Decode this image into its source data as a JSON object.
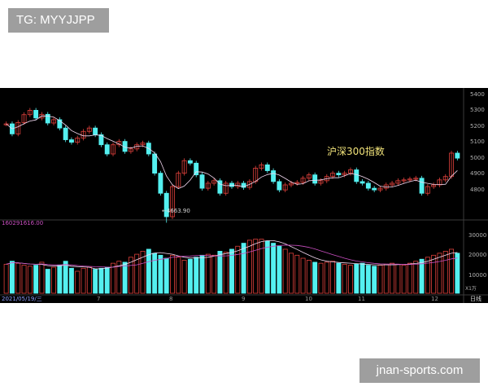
{
  "overlays": {
    "tg_label": "TG: MYYJJPP",
    "watermark": "jnan-sports.com"
  },
  "chart": {
    "index_name": "沪深300指数",
    "low_marker": "←4663.90",
    "volume_label": "160291616.00",
    "date_label": "2021/05/19/三",
    "period": "日线",
    "price_axis_labels": [
      "5400",
      "5300",
      "5200",
      "5100",
      "5000",
      "4900",
      "4800"
    ],
    "volume_axis_labels": [
      "30000",
      "20000",
      "10000"
    ],
    "volume_unit": "X1万",
    "month_labels": [
      "7",
      "8",
      "9",
      "10",
      "11",
      "12"
    ],
    "colors": {
      "background": "#000000",
      "up": "#e0413c",
      "down": "#54f0f0",
      "ma1": "#f4d9f2",
      "ma2": "#c94ec0",
      "label": "#f1e37a",
      "grid": "#3a3a3a"
    }
  },
  "chart_data": {
    "type": "candlestick",
    "price_series": [
      5255,
      5195,
      5263,
      5310,
      5336,
      5290,
      5312,
      5260,
      5280,
      5230,
      5160,
      5145,
      5170,
      5210,
      5230,
      5190,
      5130,
      5075,
      5130,
      5150,
      5090,
      5105,
      5130,
      5140,
      5075,
      4960,
      4840,
      4700,
      4880,
      4960,
      5035,
      5020,
      4950,
      4870,
      4900,
      4915,
      4840,
      4900,
      4880,
      4900,
      4875,
      4910,
      4990,
      5010,
      4975,
      4910,
      4860,
      4890,
      4900,
      4905,
      4930,
      4950,
      4900,
      4915,
      4940,
      4960,
      4950,
      4960,
      4980,
      4910,
      4900,
      4870,
      4860,
      4870,
      4890,
      4900,
      4915,
      4920,
      4925,
      4930,
      4840,
      4880,
      4890,
      4920,
      4940,
      5080,
      5050
    ],
    "ohlc": [],
    "volume_series": [
      14500,
      16000,
      15000,
      14000,
      13500,
      14000,
      15500,
      12000,
      13000,
      14000,
      16000,
      12500,
      11000,
      12500,
      13000,
      12000,
      12500,
      13000,
      15000,
      16000,
      15500,
      18000,
      19500,
      21000,
      22000,
      20000,
      19000,
      17500,
      19000,
      18000,
      16500,
      17000,
      18000,
      19000,
      19500,
      19000,
      21000,
      20500,
      22000,
      23500,
      25000,
      26500,
      27000,
      27000,
      26000,
      25000,
      23500,
      22000,
      20000,
      19000,
      17500,
      16500,
      15500,
      15000,
      15500,
      16000,
      15000,
      14500,
      14000,
      14500,
      15000,
      14000,
      13500,
      14000,
      14500,
      15000,
      14500,
      14000,
      15000,
      16000,
      17000,
      18000,
      19000,
      20000,
      21000,
      22000,
      20000
    ],
    "low_value": 4663.9,
    "price_ylim": [
      4700,
      5450
    ],
    "volume_ylim": [
      0,
      35000
    ]
  }
}
